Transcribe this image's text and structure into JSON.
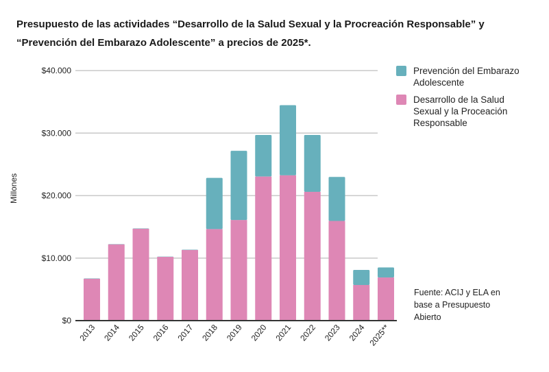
{
  "title": "Presupuesto de las actividades “Desarrollo de la Salud Sexual y la Procreación Responsable” y “Prevención del Embarazo Adolescente” a precios de 2025*.",
  "source_note": "Fuente: ACIJ y ELA en base a Presupuesto Abierto",
  "chart_data": {
    "type": "bar",
    "stacked": true,
    "title": "Presupuesto de las actividades “Desarrollo de la Salud Sexual y la Procreación Responsable” y “Prevención del Embarazo Adolescente” a precios de 2025*.",
    "xlabel": "",
    "ylabel": "Millones",
    "ylim": [
      0,
      40000
    ],
    "yticks": [
      0,
      10000,
      20000,
      30000,
      40000
    ],
    "ytick_labels": [
      "$0",
      "$10.000",
      "$20.000",
      "$30.000",
      "$40.000"
    ],
    "grid": true,
    "legend_position": "right",
    "categories": [
      "2013",
      "2014",
      "2015",
      "2016",
      "2017",
      "2018",
      "2019",
      "2020",
      "2021",
      "2022",
      "2023",
      "2024",
      "2025**"
    ],
    "series": [
      {
        "name": "Desarrollo de la Salud Sexual y la Proceación Responsable",
        "color": "#de87b5",
        "values": [
          6700,
          12200,
          14700,
          10200,
          11300,
          14650,
          16100,
          23050,
          23250,
          20600,
          15950,
          5700,
          6900
        ]
      },
      {
        "name": "Prevención del Embarazo Adolescente",
        "color": "#67b0bc",
        "values": [
          50,
          50,
          50,
          50,
          50,
          8180,
          11070,
          6650,
          11220,
          9100,
          7030,
          2410,
          1610
        ]
      }
    ]
  }
}
